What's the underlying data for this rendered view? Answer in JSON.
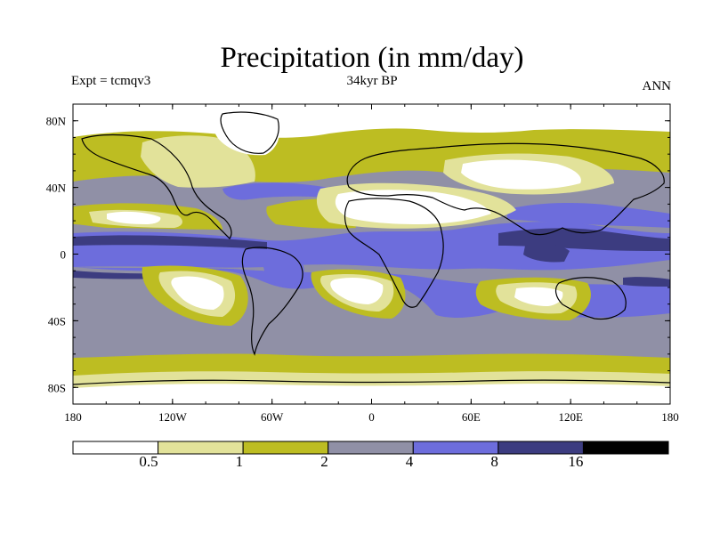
{
  "title": "Precipitation (in mm/day)",
  "experiment": "Expt = tcmqv3",
  "period": "34kyr BP",
  "season": "ANN",
  "axes": {
    "lon_ticks": [
      "180",
      "120W",
      "60W",
      "0",
      "60E",
      "120E",
      "180"
    ],
    "lat_ticks": [
      "80N",
      "40N",
      "0",
      "40S",
      "80S"
    ]
  },
  "colors": {
    "lt05": "#ffffff",
    "c05_1": "#e2e29a",
    "c1_2": "#bdbd22",
    "c2_4": "#9090a6",
    "c4_8": "#6d6ddc",
    "c8_16": "#3c3c80",
    "gt16": "#000000",
    "coast": "#000000"
  },
  "legend": {
    "labels": [
      "0.5",
      "1",
      "2",
      "4",
      "8",
      "16"
    ],
    "color_keys": [
      "lt05",
      "c05_1",
      "c1_2",
      "c2_4",
      "c4_8",
      "c8_16",
      "gt16"
    ]
  }
}
